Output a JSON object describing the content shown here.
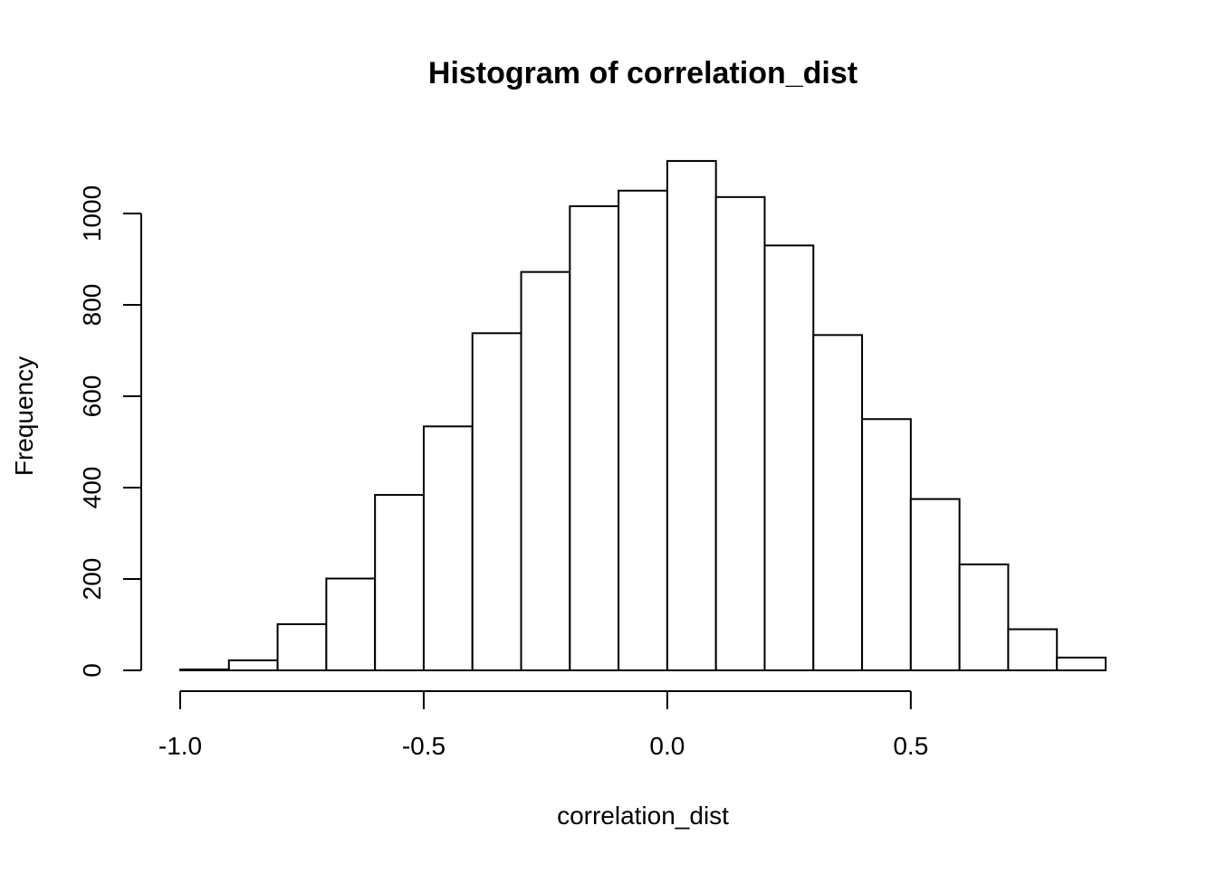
{
  "chart_data": {
    "type": "bar",
    "title": "Histogram of correlation_dist",
    "xlabel": "correlation_dist",
    "ylabel": "Frequency",
    "xlim": [
      -1.0,
      0.9
    ],
    "ylim": [
      0,
      1120
    ],
    "x_ticks": [
      -1.0,
      -0.5,
      0.0,
      0.5
    ],
    "x_tick_labels": [
      "-1.0",
      "-0.5",
      "0.0",
      "0.5"
    ],
    "y_ticks": [
      0,
      200,
      400,
      600,
      800,
      1000
    ],
    "y_tick_labels": [
      "0",
      "200",
      "400",
      "600",
      "800",
      "1000"
    ],
    "bins": [
      {
        "start": -1.0,
        "end": -0.9,
        "count": 2
      },
      {
        "start": -0.9,
        "end": -0.8,
        "count": 22
      },
      {
        "start": -0.8,
        "end": -0.7,
        "count": 101
      },
      {
        "start": -0.7,
        "end": -0.6,
        "count": 201
      },
      {
        "start": -0.6,
        "end": -0.5,
        "count": 384
      },
      {
        "start": -0.5,
        "end": -0.4,
        "count": 534
      },
      {
        "start": -0.4,
        "end": -0.3,
        "count": 738
      },
      {
        "start": -0.3,
        "end": -0.2,
        "count": 872
      },
      {
        "start": -0.2,
        "end": -0.1,
        "count": 1016
      },
      {
        "start": -0.1,
        "end": 0.0,
        "count": 1050
      },
      {
        "start": 0.0,
        "end": 0.1,
        "count": 1115
      },
      {
        "start": 0.1,
        "end": 0.2,
        "count": 1036
      },
      {
        "start": 0.2,
        "end": 0.3,
        "count": 930
      },
      {
        "start": 0.3,
        "end": 0.4,
        "count": 734
      },
      {
        "start": 0.4,
        "end": 0.5,
        "count": 550
      },
      {
        "start": 0.5,
        "end": 0.6,
        "count": 375
      },
      {
        "start": 0.6,
        "end": 0.7,
        "count": 232
      },
      {
        "start": 0.7,
        "end": 0.8,
        "count": 90
      },
      {
        "start": 0.8,
        "end": 0.9,
        "count": 28
      }
    ],
    "grid": false,
    "bar_fill": "#ffffff",
    "bar_stroke": "#000000"
  }
}
